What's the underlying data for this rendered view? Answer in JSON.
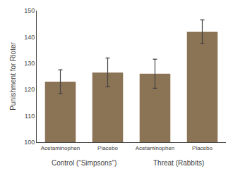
{
  "chart_data": {
    "type": "bar",
    "categories": [
      "Acetaminophen",
      "Placebo",
      "Acetaminophen",
      "Placebo"
    ],
    "values": [
      123.0,
      126.5,
      126.0,
      142.0
    ],
    "errors_upper": [
      4.5,
      5.5,
      5.5,
      4.5
    ],
    "errors_lower": [
      4.5,
      5.5,
      5.5,
      4.5
    ],
    "color": "#8B7355",
    "ylabel": "Punishment for Rioter",
    "ylim": [
      100,
      150
    ],
    "yticks": [
      100,
      110,
      120,
      130,
      140,
      150
    ],
    "grid": false,
    "annotations": [
      "Control (“Simpsons”)",
      "Threat (Rabbits)"
    ]
  }
}
